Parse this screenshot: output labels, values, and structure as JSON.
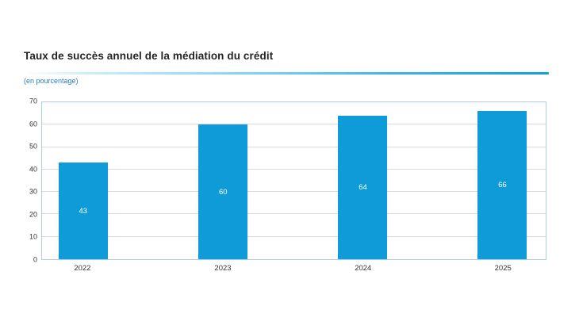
{
  "header": {
    "title": "Taux de succès annuel de la médiation du crédit",
    "subtitle": "(en pourcentage)"
  },
  "chart_data": {
    "type": "bar",
    "title": "Taux de succès annuel de la médiation du crédit",
    "subtitle": "(en pourcentage)",
    "categories": [
      "2022",
      "2023",
      "2024",
      "2025"
    ],
    "values": [
      43,
      60,
      64,
      66
    ],
    "bar_labels": [
      "43",
      "60",
      "64",
      "66"
    ],
    "xlabel": "",
    "ylabel": "",
    "ylim": [
      0,
      70
    ],
    "yticks": [
      0,
      10,
      20,
      30,
      40,
      50,
      60,
      70
    ],
    "grid": "horizontal",
    "legend": "none",
    "colors": {
      "bar": "#0f9bd7",
      "bar_label": "#ffffff",
      "plot_border": "#aecdec",
      "gridline": "#d9d9d9",
      "tick_text": "#353535",
      "title_text": "#232323",
      "subtitle_text": "#2b7dc1",
      "title_rule_end": "#0f9fdf"
    }
  }
}
